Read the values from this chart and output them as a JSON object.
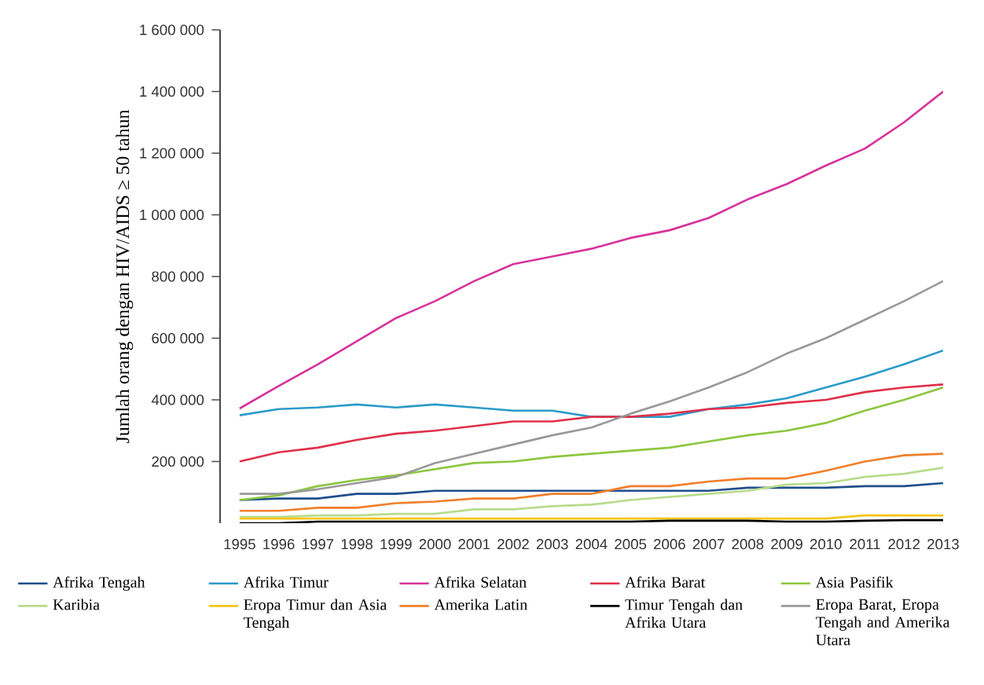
{
  "chart_data": {
    "type": "line",
    "ylabel": "Jumlah orang dengan HIV/AIDS ≥ 50 tahun",
    "x": [
      1995,
      1996,
      1997,
      1998,
      1999,
      2000,
      2001,
      2002,
      2003,
      2004,
      2005,
      2006,
      2007,
      2008,
      2009,
      2010,
      2011,
      2012,
      2013
    ],
    "xlim": [
      1994.5,
      2013
    ],
    "xticks": [
      1995,
      1996,
      1997,
      1998,
      1999,
      2000,
      2001,
      2002,
      2003,
      2004,
      2005,
      2006,
      2007,
      2008,
      2009,
      2010,
      2011,
      2012,
      2013
    ],
    "ylim": [
      0,
      1600000
    ],
    "yticks": [
      {
        "value": 200000,
        "label": "200 000"
      },
      {
        "value": 400000,
        "label": "400 000"
      },
      {
        "value": 600000,
        "label": "600 000"
      },
      {
        "value": 800000,
        "label": "800 000"
      },
      {
        "value": 1000000,
        "label": "1 000 000"
      },
      {
        "value": 1200000,
        "label": "1 200 000"
      },
      {
        "value": 1400000,
        "label": "1 400 000"
      },
      {
        "value": 1600000,
        "label": "1 600 000"
      }
    ],
    "grid": false,
    "legend": "bottom",
    "marker": "none",
    "line_style": "solid",
    "series": [
      {
        "name": "Afrika Tengah",
        "color": "#1f4e8c",
        "values": [
          75000,
          80000,
          80000,
          95000,
          95000,
          105000,
          105000,
          105000,
          105000,
          105000,
          105000,
          105000,
          105000,
          115000,
          115000,
          115000,
          120000,
          120000,
          130000
        ]
      },
      {
        "name": "Afrika Timur",
        "color": "#2a9bc8",
        "values": [
          350000,
          370000,
          375000,
          385000,
          375000,
          385000,
          375000,
          365000,
          365000,
          345000,
          345000,
          345000,
          370000,
          385000,
          405000,
          440000,
          475000,
          515000,
          560000
        ]
      },
      {
        "name": "Afrika Selatan",
        "color": "#d6339b",
        "values": [
          372000,
          445000,
          515000,
          590000,
          665000,
          720000,
          785000,
          840000,
          865000,
          890000,
          925000,
          950000,
          990000,
          1050000,
          1100000,
          1160000,
          1215000,
          1300000,
          1400000
        ]
      },
      {
        "name": "Afrika Barat",
        "color": "#e0304a",
        "values": [
          200000,
          230000,
          245000,
          270000,
          290000,
          300000,
          315000,
          330000,
          330000,
          345000,
          345000,
          355000,
          370000,
          375000,
          390000,
          400000,
          425000,
          440000,
          450000
        ]
      },
      {
        "name": "Asia Pasifik",
        "color": "#8cc63f",
        "values": [
          75000,
          90000,
          120000,
          140000,
          155000,
          175000,
          195000,
          200000,
          215000,
          225000,
          235000,
          245000,
          265000,
          285000,
          300000,
          325000,
          365000,
          400000,
          440000
        ]
      },
      {
        "name": "Karibia",
        "color": "#b8dc8c",
        "values": [
          20000,
          20000,
          25000,
          25000,
          30000,
          30000,
          45000,
          45000,
          55000,
          60000,
          75000,
          85000,
          95000,
          105000,
          125000,
          130000,
          150000,
          160000,
          180000
        ]
      },
      {
        "name": "Eropa Timur dan Asia Tengah",
        "color": "#f5c518",
        "values": [
          15000,
          15000,
          15000,
          15000,
          15000,
          15000,
          15000,
          15000,
          15000,
          15000,
          15000,
          15000,
          15000,
          15000,
          15000,
          15000,
          25000,
          25000,
          25000
        ]
      },
      {
        "name": "Amerika Latin",
        "color": "#f07f2a",
        "values": [
          40000,
          40000,
          50000,
          50000,
          65000,
          70000,
          80000,
          80000,
          95000,
          95000,
          120000,
          120000,
          135000,
          145000,
          145000,
          170000,
          200000,
          220000,
          225000
        ]
      },
      {
        "name": "Timur Tengah dan Afrika Utara",
        "color": "#000000",
        "values": [
          0,
          0,
          5000,
          5000,
          5000,
          5000,
          5000,
          5000,
          5000,
          5000,
          5000,
          8000,
          8000,
          8000,
          5000,
          5000,
          8000,
          10000,
          10000
        ]
      },
      {
        "name": "Eropa Barat, Eropa Tengah and Amerika Utara",
        "color": "#999999",
        "values": [
          95000,
          95000,
          110000,
          130000,
          150000,
          195000,
          225000,
          255000,
          285000,
          310000,
          355000,
          395000,
          440000,
          490000,
          550000,
          600000,
          660000,
          720000,
          785000
        ]
      }
    ]
  }
}
